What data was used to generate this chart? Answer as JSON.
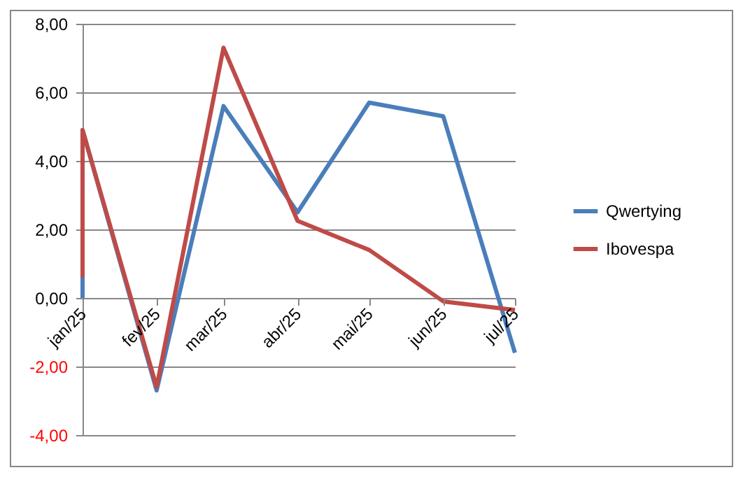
{
  "chart_data": {
    "type": "line",
    "xlim": [
      "2025-01",
      "2025-07"
    ],
    "xticks": [
      {
        "value": "2025-01",
        "label": "jan/25"
      },
      {
        "value": "2025-02",
        "label": "fev/25"
      },
      {
        "value": "2025-03",
        "label": "mar/25"
      },
      {
        "value": "2025-04",
        "label": "abr/25"
      },
      {
        "value": "2025-05",
        "label": "mai/25"
      },
      {
        "value": "2025-06",
        "label": "jun/25"
      },
      {
        "value": "2025-07",
        "label": "jul/25"
      }
    ],
    "ylim": [
      -4,
      8
    ],
    "yticks": [
      {
        "value": -4,
        "label": "-4,00"
      },
      {
        "value": -2,
        "label": "-2,00"
      },
      {
        "value": 0,
        "label": "0,00"
      },
      {
        "value": 2,
        "label": "2,00"
      },
      {
        "value": 4,
        "label": "4,00"
      },
      {
        "value": 6,
        "label": "6,00"
      },
      {
        "value": 8,
        "label": "8,00"
      }
    ],
    "grid": "y",
    "legend": "right",
    "marker": "none",
    "line_style": "solid",
    "series": [
      {
        "name": "Qwertying",
        "color": "#4a7ebb",
        "x": [
          "2025-01",
          "2025-01",
          "2025-02",
          "2025-03",
          "2025-04",
          "2025-05",
          "2025-06",
          "2025-07"
        ],
        "values": [
          0.0,
          4.9,
          -2.7,
          5.6,
          2.5,
          5.7,
          5.3,
          -1.6
        ]
      },
      {
        "name": "Ibovespa",
        "color": "#be4b48",
        "x": [
          "2025-01",
          "2025-01",
          "2025-02",
          "2025-03",
          "2025-04",
          "2025-05",
          "2025-06",
          "2025-07"
        ],
        "values": [
          0.6,
          4.9,
          -2.6,
          7.3,
          2.25,
          1.4,
          -0.1,
          -0.35
        ]
      }
    ]
  }
}
